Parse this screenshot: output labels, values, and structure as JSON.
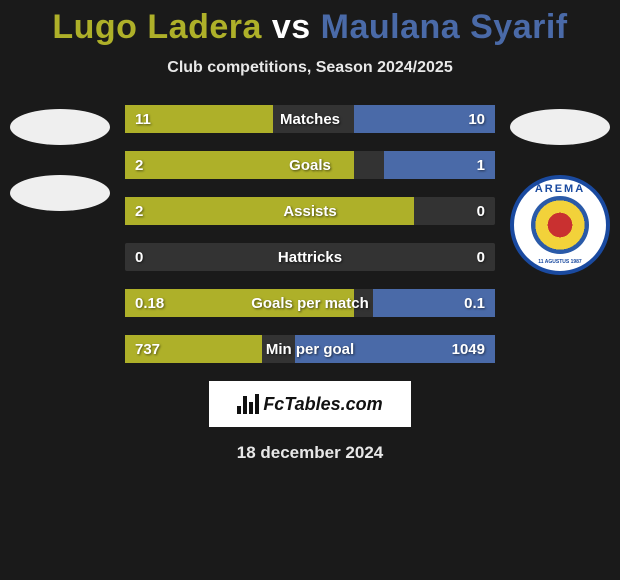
{
  "title": {
    "player1": "Lugo Ladera",
    "vs": "vs",
    "player2": "Maulana Syarif"
  },
  "subtitle": "Club competitions, Season 2024/2025",
  "colors": {
    "player1": "#aeb029",
    "player2": "#4a6aa8",
    "background": "#1a1a1a",
    "bar_bg": "#333333",
    "text": "#ffffff"
  },
  "stats": [
    {
      "label": "Matches",
      "left_val": "11",
      "right_val": "10",
      "left_pct": 40,
      "right_pct": 38
    },
    {
      "label": "Goals",
      "left_val": "2",
      "right_val": "1",
      "left_pct": 62,
      "right_pct": 30
    },
    {
      "label": "Assists",
      "left_val": "2",
      "right_val": "0",
      "left_pct": 78,
      "right_pct": 0
    },
    {
      "label": "Hattricks",
      "left_val": "0",
      "right_val": "0",
      "left_pct": 0,
      "right_pct": 0
    },
    {
      "label": "Goals per match",
      "left_val": "0.18",
      "right_val": "0.1",
      "left_pct": 62,
      "right_pct": 33
    },
    {
      "label": "Min per goal",
      "left_val": "737",
      "right_val": "1049",
      "left_pct": 37,
      "right_pct": 54
    }
  ],
  "badges": {
    "left": [
      {
        "type": "placeholder"
      },
      {
        "type": "placeholder"
      }
    ],
    "right": [
      {
        "type": "placeholder"
      },
      {
        "type": "arema",
        "top_text": "AREMA",
        "bottom_text": "11 AGUSTUS 1987"
      }
    ]
  },
  "footer": {
    "brand": "FcTables.com",
    "date": "18 december 2024"
  }
}
